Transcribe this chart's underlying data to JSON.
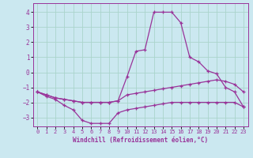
{
  "xlabel": "Windchill (Refroidissement éolien,°C)",
  "background_color": "#cbe8f0",
  "grid_color": "#aad4cc",
  "line_color": "#993399",
  "xlim": [
    -0.5,
    23.5
  ],
  "ylim": [
    -3.6,
    4.6
  ],
  "yticks": [
    -3,
    -2,
    -1,
    0,
    1,
    2,
    3,
    4
  ],
  "xticks": [
    0,
    1,
    2,
    3,
    4,
    5,
    6,
    7,
    8,
    9,
    10,
    11,
    12,
    13,
    14,
    15,
    16,
    17,
    18,
    19,
    20,
    21,
    22,
    23
  ],
  "line_bottom_x": [
    0,
    1,
    2,
    3,
    4,
    5,
    6,
    7,
    8,
    9,
    10,
    11,
    12,
    13,
    14,
    15,
    16,
    17,
    18,
    19,
    20,
    21,
    22,
    23
  ],
  "line_bottom_y": [
    -1.3,
    -1.6,
    -1.8,
    -2.2,
    -2.5,
    -3.2,
    -3.4,
    -3.4,
    -3.4,
    -2.7,
    -2.5,
    -2.4,
    -2.3,
    -2.2,
    -2.1,
    -2.0,
    -2.0,
    -2.0,
    -2.0,
    -2.0,
    -2.0,
    -2.0,
    -2.0,
    -2.3
  ],
  "line_mid_x": [
    0,
    1,
    2,
    3,
    4,
    5,
    6,
    7,
    8,
    9,
    10,
    11,
    12,
    13,
    14,
    15,
    16,
    17,
    18,
    19,
    20,
    21,
    22,
    23
  ],
  "line_mid_y": [
    -1.3,
    -1.5,
    -1.7,
    -1.8,
    -1.9,
    -2.0,
    -2.0,
    -2.0,
    -2.0,
    -1.9,
    -1.5,
    -1.4,
    -1.3,
    -1.2,
    -1.1,
    -1.0,
    -0.9,
    -0.8,
    -0.7,
    -0.6,
    -0.5,
    -0.6,
    -0.8,
    -1.3
  ],
  "line_top_x": [
    0,
    1,
    2,
    3,
    4,
    5,
    6,
    7,
    8,
    9,
    10,
    11,
    12,
    13,
    14,
    15,
    16,
    17,
    18,
    19,
    20,
    21,
    22,
    23
  ],
  "line_top_y": [
    -1.3,
    -1.5,
    -1.7,
    -1.8,
    -1.9,
    -2.0,
    -2.0,
    -2.0,
    -2.0,
    -1.9,
    -0.3,
    1.4,
    1.5,
    4.0,
    4.0,
    4.0,
    3.3,
    1.0,
    0.7,
    0.1,
    -0.1,
    -1.0,
    -1.3,
    -2.3
  ]
}
